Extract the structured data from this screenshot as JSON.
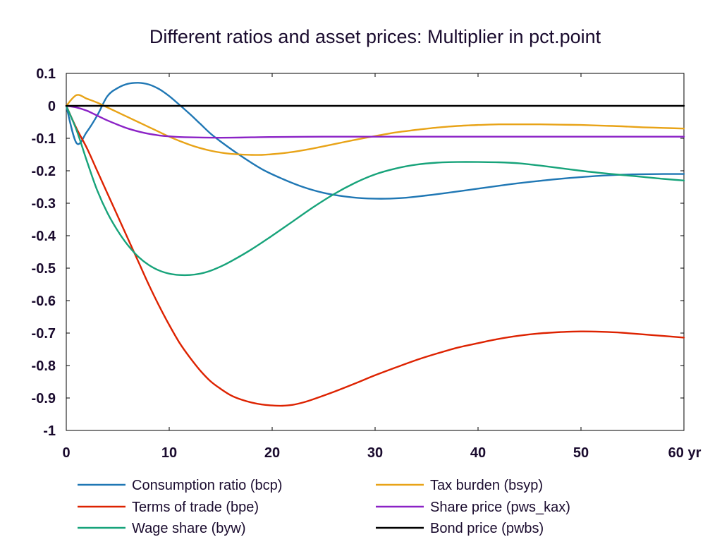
{
  "chart_data": {
    "type": "line",
    "title": "Different ratios and asset prices: Multiplier in pct.point",
    "xlim": [
      0,
      60
    ],
    "ylim": [
      -1,
      0.1
    ],
    "x_ticks": [
      {
        "value": 0,
        "label": "0"
      },
      {
        "value": 10,
        "label": "10"
      },
      {
        "value": 20,
        "label": "20"
      },
      {
        "value": 30,
        "label": "30"
      },
      {
        "value": 40,
        "label": "40"
      },
      {
        "value": 50,
        "label": "50"
      },
      {
        "value": 60,
        "label": "60 yr"
      }
    ],
    "y_ticks": [
      {
        "value": 0.1,
        "label": "0.1"
      },
      {
        "value": 0,
        "label": "0"
      },
      {
        "value": -0.1,
        "label": "-0.1"
      },
      {
        "value": -0.2,
        "label": "-0.2"
      },
      {
        "value": -0.3,
        "label": "-0.3"
      },
      {
        "value": -0.4,
        "label": "-0.4"
      },
      {
        "value": -0.5,
        "label": "-0.5"
      },
      {
        "value": -0.6,
        "label": "-0.6"
      },
      {
        "value": -0.7,
        "label": "-0.7"
      },
      {
        "value": -0.8,
        "label": "-0.8"
      },
      {
        "value": -0.9,
        "label": "-0.9"
      },
      {
        "value": -1,
        "label": "-1"
      }
    ],
    "grid": false,
    "legend_position": "bottom",
    "series": [
      {
        "name": "Consumption ratio (bcp)",
        "color": "#1f77b4",
        "points": [
          [
            0,
            0
          ],
          [
            1,
            -0.115
          ],
          [
            2,
            -0.08
          ],
          [
            3,
            -0.03
          ],
          [
            4,
            0.03
          ],
          [
            5,
            0.055
          ],
          [
            6,
            0.068
          ],
          [
            7,
            0.071
          ],
          [
            8,
            0.066
          ],
          [
            9,
            0.052
          ],
          [
            10,
            0.03
          ],
          [
            11,
            0.003
          ],
          [
            12,
            -0.025
          ],
          [
            13,
            -0.055
          ],
          [
            14,
            -0.085
          ],
          [
            15,
            -0.11
          ],
          [
            17,
            -0.155
          ],
          [
            19,
            -0.195
          ],
          [
            21,
            -0.225
          ],
          [
            23,
            -0.25
          ],
          [
            25,
            -0.268
          ],
          [
            27,
            -0.279
          ],
          [
            29,
            -0.285
          ],
          [
            31,
            -0.286
          ],
          [
            33,
            -0.283
          ],
          [
            35,
            -0.276
          ],
          [
            37,
            -0.268
          ],
          [
            40,
            -0.255
          ],
          [
            43,
            -0.242
          ],
          [
            46,
            -0.231
          ],
          [
            49,
            -0.222
          ],
          [
            52,
            -0.215
          ],
          [
            55,
            -0.211
          ],
          [
            58,
            -0.21
          ],
          [
            60,
            -0.21
          ]
        ]
      },
      {
        "name": "Terms of trade (bpe)",
        "color": "#dd2200",
        "points": [
          [
            0,
            0
          ],
          [
            1,
            -0.07
          ],
          [
            2,
            -0.13
          ],
          [
            3,
            -0.2
          ],
          [
            4,
            -0.27
          ],
          [
            5,
            -0.34
          ],
          [
            6,
            -0.41
          ],
          [
            7,
            -0.48
          ],
          [
            8,
            -0.55
          ],
          [
            9,
            -0.615
          ],
          [
            10,
            -0.675
          ],
          [
            11,
            -0.73
          ],
          [
            12,
            -0.775
          ],
          [
            13,
            -0.815
          ],
          [
            14,
            -0.848
          ],
          [
            15,
            -0.872
          ],
          [
            16,
            -0.892
          ],
          [
            17,
            -0.905
          ],
          [
            18,
            -0.914
          ],
          [
            19,
            -0.92
          ],
          [
            20,
            -0.923
          ],
          [
            21,
            -0.924
          ],
          [
            22,
            -0.921
          ],
          [
            23,
            -0.914
          ],
          [
            24,
            -0.904
          ],
          [
            26,
            -0.881
          ],
          [
            28,
            -0.856
          ],
          [
            30,
            -0.83
          ],
          [
            32,
            -0.806
          ],
          [
            34,
            -0.783
          ],
          [
            36,
            -0.763
          ],
          [
            38,
            -0.745
          ],
          [
            40,
            -0.731
          ],
          [
            42,
            -0.718
          ],
          [
            44,
            -0.708
          ],
          [
            46,
            -0.701
          ],
          [
            48,
            -0.697
          ],
          [
            50,
            -0.695
          ],
          [
            52,
            -0.696
          ],
          [
            54,
            -0.699
          ],
          [
            56,
            -0.704
          ],
          [
            58,
            -0.709
          ],
          [
            60,
            -0.714
          ]
        ]
      },
      {
        "name": "Wage share (byw)",
        "color": "#17a37a",
        "points": [
          [
            0,
            0
          ],
          [
            1,
            -0.075
          ],
          [
            2,
            -0.17
          ],
          [
            3,
            -0.26
          ],
          [
            4,
            -0.33
          ],
          [
            5,
            -0.385
          ],
          [
            6,
            -0.43
          ],
          [
            7,
            -0.465
          ],
          [
            8,
            -0.49
          ],
          [
            9,
            -0.507
          ],
          [
            10,
            -0.517
          ],
          [
            11,
            -0.521
          ],
          [
            12,
            -0.521
          ],
          [
            13,
            -0.517
          ],
          [
            14,
            -0.508
          ],
          [
            15,
            -0.495
          ],
          [
            16,
            -0.479
          ],
          [
            18,
            -0.442
          ],
          [
            20,
            -0.4
          ],
          [
            22,
            -0.356
          ],
          [
            24,
            -0.312
          ],
          [
            26,
            -0.272
          ],
          [
            28,
            -0.238
          ],
          [
            30,
            -0.211
          ],
          [
            32,
            -0.193
          ],
          [
            34,
            -0.181
          ],
          [
            36,
            -0.175
          ],
          [
            38,
            -0.173
          ],
          [
            40,
            -0.173
          ],
          [
            42,
            -0.174
          ],
          [
            44,
            -0.177
          ],
          [
            46,
            -0.184
          ],
          [
            48,
            -0.192
          ],
          [
            50,
            -0.2
          ],
          [
            52,
            -0.207
          ],
          [
            54,
            -0.213
          ],
          [
            56,
            -0.219
          ],
          [
            58,
            -0.225
          ],
          [
            60,
            -0.23
          ]
        ]
      },
      {
        "name": "Tax burden (bsyp)",
        "color": "#e8a317",
        "points": [
          [
            0,
            0
          ],
          [
            1,
            0.033
          ],
          [
            2,
            0.022
          ],
          [
            3,
            0.01
          ],
          [
            4,
            -0.005
          ],
          [
            5,
            -0.02
          ],
          [
            6,
            -0.035
          ],
          [
            7,
            -0.05
          ],
          [
            8,
            -0.065
          ],
          [
            9,
            -0.08
          ],
          [
            10,
            -0.095
          ],
          [
            11,
            -0.108
          ],
          [
            12,
            -0.12
          ],
          [
            13,
            -0.13
          ],
          [
            14,
            -0.138
          ],
          [
            15,
            -0.144
          ],
          [
            16,
            -0.148
          ],
          [
            17,
            -0.15
          ],
          [
            18,
            -0.151
          ],
          [
            19,
            -0.151
          ],
          [
            20,
            -0.149
          ],
          [
            22,
            -0.142
          ],
          [
            24,
            -0.131
          ],
          [
            26,
            -0.118
          ],
          [
            28,
            -0.105
          ],
          [
            30,
            -0.093
          ],
          [
            32,
            -0.082
          ],
          [
            34,
            -0.074
          ],
          [
            36,
            -0.067
          ],
          [
            38,
            -0.062
          ],
          [
            40,
            -0.059
          ],
          [
            42,
            -0.057
          ],
          [
            44,
            -0.057
          ],
          [
            46,
            -0.057
          ],
          [
            48,
            -0.058
          ],
          [
            50,
            -0.059
          ],
          [
            52,
            -0.061
          ],
          [
            54,
            -0.063
          ],
          [
            56,
            -0.066
          ],
          [
            58,
            -0.068
          ],
          [
            60,
            -0.07
          ]
        ]
      },
      {
        "name": "Share price (pws_kax)",
        "color": "#8b22c6",
        "points": [
          [
            0,
            0
          ],
          [
            1,
            -0.005
          ],
          [
            2,
            -0.015
          ],
          [
            3,
            -0.03
          ],
          [
            4,
            -0.045
          ],
          [
            5,
            -0.058
          ],
          [
            6,
            -0.07
          ],
          [
            7,
            -0.079
          ],
          [
            8,
            -0.086
          ],
          [
            9,
            -0.091
          ],
          [
            10,
            -0.094
          ],
          [
            11,
            -0.096
          ],
          [
            12,
            -0.097
          ],
          [
            14,
            -0.098
          ],
          [
            16,
            -0.098
          ],
          [
            18,
            -0.097
          ],
          [
            20,
            -0.096
          ],
          [
            25,
            -0.095
          ],
          [
            30,
            -0.095
          ],
          [
            40,
            -0.095
          ],
          [
            50,
            -0.095
          ],
          [
            60,
            -0.095
          ]
        ]
      },
      {
        "name": "Bond price (pwbs)",
        "color": "#000000",
        "points": [
          [
            0,
            0
          ],
          [
            60,
            0
          ]
        ]
      }
    ]
  }
}
